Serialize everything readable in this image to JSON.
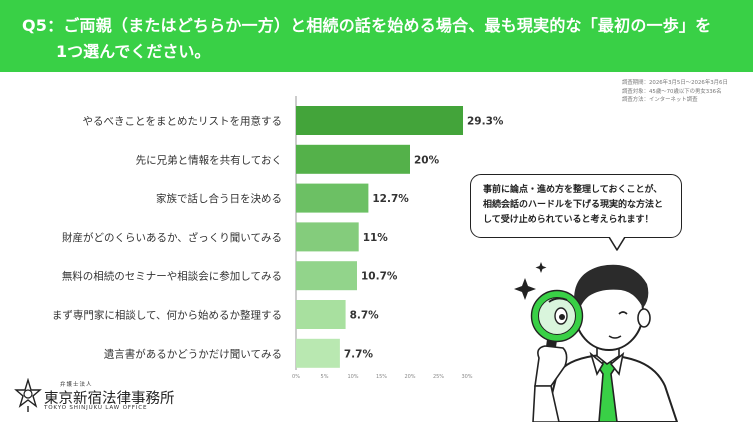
{
  "header": {
    "question_line1": "Q5：ご両親（またはどちらか一方）と相続の話を始める場合、最も現実的な「最初の一歩」を",
    "question_line2": "1つ選んでください。"
  },
  "survey_meta": {
    "line1": "調査期間：2026年3月5日〜2026年3月6日",
    "line2": "調査対象：45歳〜70歳以下の男女336名",
    "line3": "調査方法：インターネット調査"
  },
  "chart_data": {
    "type": "bar",
    "orientation": "horizontal",
    "categories": [
      "やるべきことをまとめたリストを用意する",
      "先に兄弟と情報を共有しておく",
      "家族で話し合う日を決める",
      "財産がどのくらいあるか、ざっくり聞いてみる",
      "無料の相続のセミナーや相談会に参加してみる",
      "まず専門家に相談して、何から始めるか整理する",
      "遺言書があるかどうかだけ聞いてみる"
    ],
    "values": [
      29.3,
      20,
      12.7,
      11,
      10.7,
      8.7,
      7.7
    ],
    "value_labels": [
      "29.3%",
      "20%",
      "12.7%",
      "11%",
      "10.7%",
      "8.7%",
      "7.7%"
    ],
    "bar_colors": [
      "#43a43a",
      "#54b14a",
      "#6cc064",
      "#84cc7c",
      "#92d48b",
      "#a8e09f",
      "#b9e8b1"
    ],
    "xlim": [
      0,
      30
    ],
    "ticks": [
      "0%",
      "5%",
      "10%",
      "15%",
      "20%",
      "25%",
      "30%"
    ],
    "title": "",
    "xlabel": "",
    "ylabel": ""
  },
  "callout": {
    "line1": "事前に論点・進め方を整理しておくことが、",
    "line2": "相続会話のハードルを下げる現実的な方法と",
    "line3": "して受け止められていると考えられます！"
  },
  "logo": {
    "sub": "弁護士法人",
    "name": "東京新宿法律事務所",
    "english": "TOKYO SHINJUKU LAW OFFICE"
  },
  "illustration": {
    "icon": "man-with-magnifying-glass-icon",
    "accent": "#39d046"
  }
}
